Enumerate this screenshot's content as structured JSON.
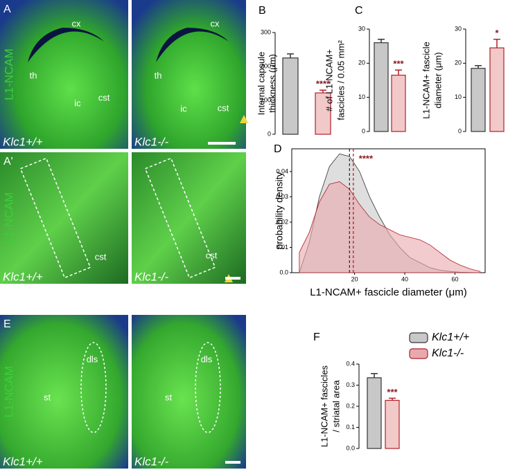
{
  "panels": [
    {
      "label": "A",
      "side_label": "L1-NCAM",
      "images": [
        {
          "genotype": "Klc1+/+",
          "labels": [
            "cx",
            "th",
            "ic",
            "cst"
          ]
        },
        {
          "genotype": "Klc1-/-",
          "labels": [
            "cx",
            "th",
            "ic",
            "cst"
          ]
        }
      ]
    },
    {
      "label": "A'",
      "side_label": "L1-NCAM",
      "images": [
        {
          "genotype": "Klc1+/+",
          "labels": [
            "cst"
          ]
        },
        {
          "genotype": "Klc1-/-",
          "labels": [
            "cst"
          ]
        }
      ]
    },
    {
      "label": "E",
      "side_label": "L1-NCAM",
      "images": [
        {
          "genotype": "Klc1+/+",
          "labels": [
            "dls",
            "st"
          ]
        },
        {
          "genotype": "Klc1-/-",
          "labels": [
            "dls",
            "st"
          ]
        }
      ]
    }
  ],
  "chart_data": [
    {
      "type": "bar",
      "panel_label": "B",
      "ylabel": [
        "Internal capsule",
        "thickness (μm)"
      ],
      "values": [
        225,
        122
      ],
      "errors": [
        12,
        8
      ],
      "colors": [
        "#c8c8c8",
        "#f2c9c9"
      ],
      "edges": [
        "#333333",
        "#b0202a"
      ],
      "annotation": "****",
      "ylim": [
        0,
        300
      ],
      "yticks": [
        0,
        100,
        200,
        300
      ]
    },
    {
      "type": "bar",
      "panel_label": "C",
      "ylabel": [
        "# of L1-NCAM+",
        "fascicles / 0.05 mm²"
      ],
      "values": [
        26,
        16.5
      ],
      "errors": [
        1,
        1.5
      ],
      "colors": [
        "#c8c8c8",
        "#f2c9c9"
      ],
      "edges": [
        "#333333",
        "#b0202a"
      ],
      "annotation": "***",
      "ylim": [
        0,
        30
      ],
      "yticks": [
        0,
        10,
        20,
        30
      ]
    },
    {
      "type": "bar",
      "ylabel": [
        "L1-NCAM+ fascicle",
        "diameter (μm)"
      ],
      "values": [
        18.5,
        24.5
      ],
      "errors": [
        0.8,
        2.5
      ],
      "colors": [
        "#c8c8c8",
        "#f2c9c9"
      ],
      "edges": [
        "#333333",
        "#b0202a"
      ],
      "annotation": "*",
      "ylim": [
        0,
        30
      ],
      "yticks": [
        0,
        10,
        20,
        30
      ]
    },
    {
      "type": "area",
      "panel_label": "D",
      "xlabel": "L1-NCAM+ fascicle diameter (μm)",
      "ylabel": "probability density",
      "annotation": "****",
      "x": [
        -2,
        2,
        6,
        10,
        14,
        18,
        22,
        26,
        30,
        34,
        38,
        42,
        46,
        50,
        54,
        58,
        62,
        66,
        70
      ],
      "series": [
        {
          "name": "Klc1+/+",
          "color": "#c8c8c8",
          "edge": "#333333",
          "mean": 18,
          "values": [
            0,
            0.012,
            0.03,
            0.042,
            0.047,
            0.046,
            0.04,
            0.03,
            0.022,
            0.015,
            0.01,
            0.006,
            0.004,
            0.002,
            0.001,
            0.0005,
            0.0002,
            0.0001,
            0
          ]
        },
        {
          "name": "Klc1-/-",
          "color": "#e8a9ad",
          "edge": "#b0202a",
          "mean": 19.5,
          "values": [
            0.008,
            0.016,
            0.028,
            0.035,
            0.036,
            0.033,
            0.027,
            0.022,
            0.019,
            0.017,
            0.015,
            0.014,
            0.013,
            0.011,
            0.008,
            0.005,
            0.003,
            0.0015,
            0.0005
          ]
        }
      ],
      "xlim": [
        -5,
        72
      ],
      "xticks": [
        20,
        40,
        60
      ],
      "ylim": [
        0,
        0.049
      ],
      "yticks": [
        {
          "value": 0,
          "label": "0.0"
        },
        0.01,
        0.02,
        0.03,
        0.04
      ]
    },
    {
      "type": "bar",
      "panel_label": "F",
      "ylabel": [
        "L1-NCAM+ fascicles",
        "/ striatal area"
      ],
      "values": [
        0.335,
        0.228
      ],
      "errors": [
        0.02,
        0.01
      ],
      "colors": [
        "#c8c8c8",
        "#f2c9c9"
      ],
      "edges": [
        "#333333",
        "#b0202a"
      ],
      "annotation": "***",
      "ylim": [
        0,
        0.4
      ],
      "yticks": [
        {
          "value": 0,
          "label": "0.0"
        },
        0.1,
        0.2,
        0.3,
        0.4
      ]
    }
  ]
}
